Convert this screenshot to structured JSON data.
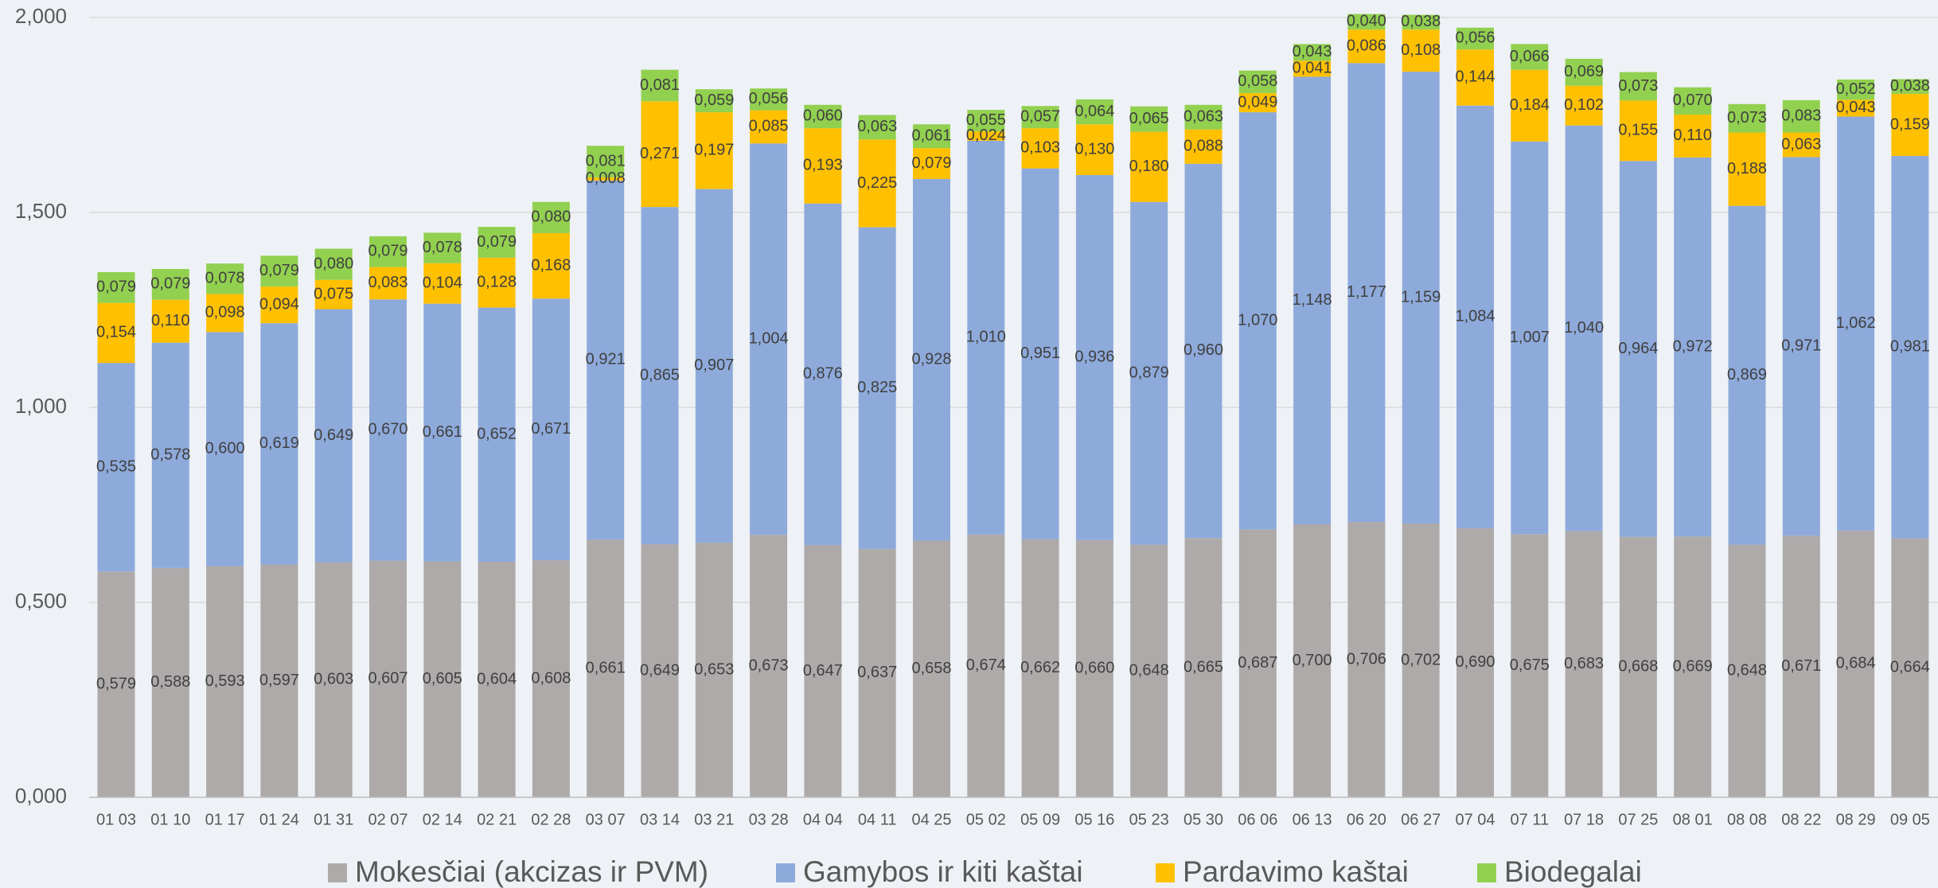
{
  "chart_data": {
    "type": "stacked_bar",
    "categories": [
      "01 03",
      "01 10",
      "01 17",
      "01 24",
      "01 31",
      "02 07",
      "02 14",
      "02 21",
      "02 28",
      "03 07",
      "03 14",
      "03 21",
      "03 28",
      "04 04",
      "04 11",
      "04 25",
      "05 02",
      "05 09",
      "05 16",
      "05 23",
      "05 30",
      "06 06",
      "06 13",
      "06 20",
      "06 27",
      "07 04",
      "07 11",
      "07 18",
      "07 25",
      "08 01",
      "08 08",
      "08 22",
      "08 29",
      "09 05"
    ],
    "series": [
      {
        "name": "Mokesčiai (akcizas ir PVM)",
        "color": "#aeaaaa",
        "values": [
          0.579,
          0.588,
          0.593,
          0.597,
          0.603,
          0.607,
          0.605,
          0.604,
          0.608,
          0.661,
          0.649,
          0.653,
          0.673,
          0.647,
          0.637,
          0.658,
          0.674,
          0.662,
          0.66,
          0.648,
          0.665,
          0.687,
          0.7,
          0.706,
          0.702,
          0.69,
          0.675,
          0.683,
          0.668,
          0.669,
          0.648,
          0.671,
          0.684,
          0.664
        ],
        "value_labels": [
          "0,579",
          "0,588",
          "0,593",
          "0,597",
          "0,603",
          "0,607",
          "0,605",
          "0,604",
          "0,608",
          "0,661",
          "0,649",
          "0,653",
          "0,673",
          "0,647",
          "0,637",
          "0,658",
          "0,674",
          "0,662",
          "0,660",
          "0,648",
          "0,665",
          "0,687",
          "0,700",
          "0,706",
          "0,702",
          "0,690",
          "0,675",
          "0,683",
          "0,668",
          "0,669",
          "0,648",
          "0,671",
          "0,684",
          "0,664"
        ]
      },
      {
        "name": "Gamybos ir kiti kaštai",
        "color": "#8eaadb",
        "values": [
          0.535,
          0.578,
          0.6,
          0.619,
          0.649,
          0.67,
          0.661,
          0.652,
          0.671,
          0.921,
          0.865,
          0.907,
          1.004,
          0.876,
          0.825,
          0.928,
          1.01,
          0.951,
          0.936,
          0.879,
          0.96,
          1.07,
          1.148,
          1.177,
          1.159,
          1.084,
          1.007,
          1.04,
          0.964,
          0.972,
          0.869,
          0.971,
          1.062,
          0.981
        ],
        "value_labels": [
          "0,535",
          "0,578",
          "0,600",
          "0,619",
          "0,649",
          "0,670",
          "0,661",
          "0,652",
          "0,671",
          "0,921",
          "0,865",
          "0,907",
          "1,004",
          "0,876",
          "0,825",
          "0,928",
          "1,010",
          "0,951",
          "0,936",
          "0,879",
          "0,960",
          "1,070",
          "1,148",
          "1,177",
          "1,159",
          "1,084",
          "1,007",
          "1,040",
          "0,964",
          "0,972",
          "0,869",
          "0,971",
          "1,062",
          "0,981"
        ]
      },
      {
        "name": "Pardavimo kaštai",
        "color": "#ffc000",
        "values": [
          0.154,
          0.11,
          0.098,
          0.094,
          0.075,
          0.083,
          0.104,
          0.128,
          0.168,
          0.008,
          0.271,
          0.197,
          0.085,
          0.193,
          0.225,
          0.079,
          0.024,
          0.103,
          0.13,
          0.18,
          0.088,
          0.049,
          0.041,
          0.086,
          0.108,
          0.144,
          0.184,
          0.102,
          0.155,
          0.11,
          0.188,
          0.063,
          0.043,
          0.159
        ],
        "value_labels": [
          "0,154",
          "0,110",
          "0,098",
          "0,094",
          "0,075",
          "0,083",
          "0,104",
          "0,128",
          "0,168",
          "0,008",
          "0,271",
          "0,197",
          "0,085",
          "0,193",
          "0,225",
          "0,079",
          "0,024",
          "0,103",
          "0,130",
          "0,180",
          "0,088",
          "0,049",
          "0,041",
          "0,086",
          "0,108",
          "0,144",
          "0,184",
          "0,102",
          "0,155",
          "0,110",
          "0,188",
          "0,063",
          "0,043",
          "0,159"
        ]
      },
      {
        "name": "Biodegalai",
        "color": "#92d050",
        "values": [
          0.079,
          0.079,
          0.078,
          0.079,
          0.08,
          0.079,
          0.078,
          0.079,
          0.08,
          0.081,
          0.081,
          0.059,
          0.056,
          0.06,
          0.063,
          0.061,
          0.055,
          0.057,
          0.064,
          0.065,
          0.063,
          0.058,
          0.043,
          0.04,
          0.038,
          0.056,
          0.066,
          0.069,
          0.073,
          0.07,
          0.073,
          0.083,
          0.052,
          0.038
        ],
        "value_labels": [
          "0,079",
          "0,079",
          "0,078",
          "0,079",
          "0,080",
          "0,079",
          "0,078",
          "0,079",
          "0,080",
          "0,081",
          "0,081",
          "0,059",
          "0,056",
          "0,060",
          "0,063",
          "0,061",
          "0,055",
          "0,057",
          "0,064",
          "0,065",
          "0,063",
          "0,058",
          "0,043",
          "0,040",
          "0,038",
          "0,056",
          "0,066",
          "0,069",
          "0,073",
          "0,070",
          "0,073",
          "0,083",
          "0,052",
          "0,038"
        ]
      }
    ],
    "ylim": [
      0,
      2
    ],
    "yticks": [
      {
        "value": 0,
        "label": "0,000"
      },
      {
        "value": 0.5,
        "label": "0,500"
      },
      {
        "value": 1,
        "label": "1,000"
      },
      {
        "value": 1.5,
        "label": "1,500"
      },
      {
        "value": 2,
        "label": "2,000"
      }
    ],
    "grid": true,
    "legend": "bottom"
  }
}
